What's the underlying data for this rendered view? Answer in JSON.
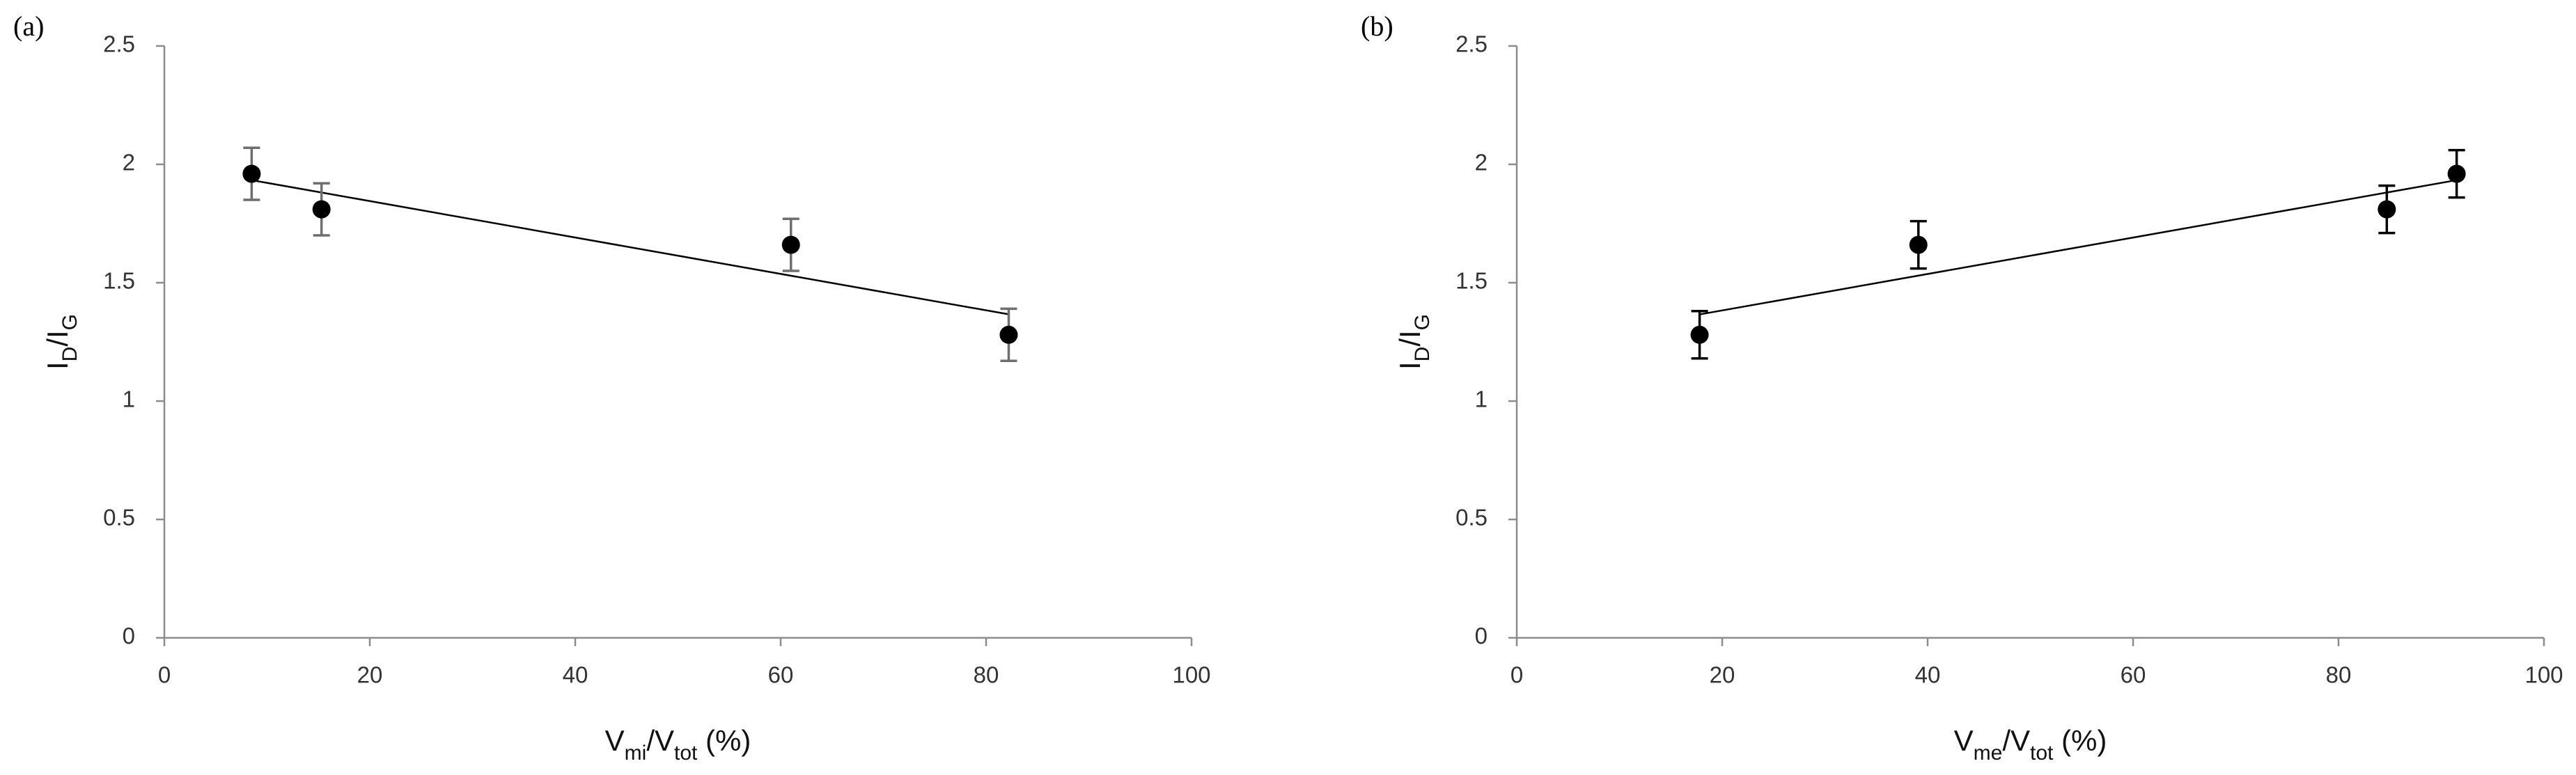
{
  "chart_data": [
    {
      "type": "scatter",
      "panel": "(a)",
      "xlabel": [
        "V",
        "mi",
        "/V",
        "tot",
        " (%)"
      ],
      "ylabel": [
        "I",
        "D",
        "/I",
        "G"
      ],
      "x": [
        8.5,
        15.3,
        61,
        82.2
      ],
      "y": [
        1.96,
        1.81,
        1.66,
        1.28
      ],
      "errors": [
        0.11,
        0.11,
        0.11,
        0.11
      ],
      "color": "#000000",
      "error_color": "#6e6e6e",
      "trendline": "linear",
      "xlim": [
        0,
        100
      ],
      "xticks": [
        0,
        20,
        40,
        60,
        80,
        100
      ],
      "ylim": [
        0,
        2.5
      ],
      "yticks": [
        0,
        0.5,
        1,
        1.5,
        2,
        2.5
      ]
    },
    {
      "type": "scatter",
      "panel": "(b)",
      "xlabel": [
        "V",
        "me",
        "/V",
        "tot",
        " (%)"
      ],
      "ylabel": [
        "I",
        "D",
        "/I",
        "G"
      ],
      "x": [
        17.8,
        39.1,
        84.7,
        91.5
      ],
      "y": [
        1.28,
        1.66,
        1.81,
        1.96
      ],
      "errors": [
        0.1,
        0.1,
        0.1,
        0.1
      ],
      "color": "#000000",
      "error_color": "#000000",
      "trendline": "linear",
      "xlim": [
        0,
        100
      ],
      "xticks": [
        0,
        20,
        40,
        60,
        80,
        100
      ],
      "ylim": [
        0,
        2.5
      ],
      "yticks": [
        0,
        0.5,
        1,
        1.5,
        2,
        2.5
      ]
    }
  ]
}
